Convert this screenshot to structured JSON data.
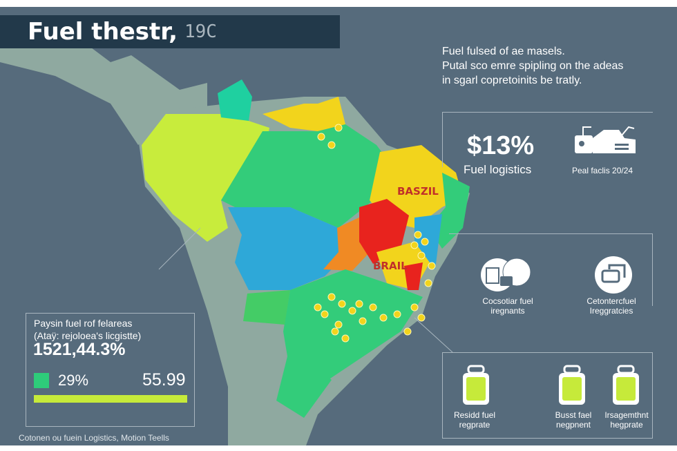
{
  "header": {
    "title": "Fuel thestr,",
    "title_suffix": "19C"
  },
  "intro": [
    "Fuel fulsed of ae masels.",
    "Putal sco emre spipling on the adeas",
    "in sgarl copretoinits be tratly."
  ],
  "map": {
    "labels": [
      "BASZIL",
      "BRAIL"
    ],
    "colors": {
      "land": "#8fa9a0",
      "lime": "#c8ec3c",
      "green": "#33cc7a",
      "teal": "#1fd0a0",
      "blue": "#2ea8d8",
      "yellow": "#f2d41c",
      "orange": "#f08a24",
      "red": "#e8231e"
    }
  },
  "stats": {
    "value": "$13%",
    "label": "Fuel logistics",
    "car_label": "Peal faclis 20/24"
  },
  "features": [
    {
      "icon": "documents-truck-icon",
      "label_1": "Cocsotiar fuel",
      "label_2": "iregnants"
    },
    {
      "icon": "vehicles-icon",
      "label_1": "Cetontercfuel",
      "label_2": "Ireggratcies"
    }
  ],
  "tanks": [
    {
      "label_1": "Residd fuel",
      "label_2": "regprate"
    },
    {
      "label_1": "Busst fael",
      "label_2": "negpnent"
    },
    {
      "label_1": "Irsagemthnt",
      "label_2": "hegprate"
    }
  ],
  "left_box": {
    "line_1": "Paysin fuel rof felareas",
    "line_2": "(Ataÿ: rejoloea's licgistte)",
    "big_value": "1521,44.3%",
    "legend_pct": "29%",
    "legend_value": "55.99",
    "bar_fill": 1.0
  },
  "footer": "Cotonen ou fuein Logistics, Motion Teells"
}
